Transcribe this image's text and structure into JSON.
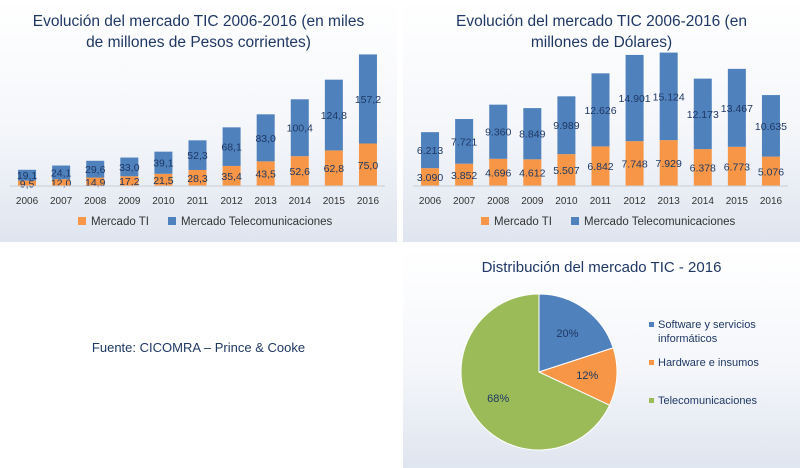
{
  "colors": {
    "ti": "#f79646",
    "tel": "#4f81bd",
    "pie_software": "#4f81bd",
    "pie_hardware": "#f79646",
    "pie_tele": "#9bbb59",
    "text": "#1f3864"
  },
  "source": "Fuente: CICOMRA – Prince & Cooke",
  "chart_data": [
    {
      "type": "bar",
      "stacked": true,
      "title_line1": "Evolución del mercado TIC 2006-2016 (en miles",
      "title_line2": "de millones de Pesos corrientes)",
      "categories": [
        "2006",
        "2007",
        "2008",
        "2009",
        "2010",
        "2011",
        "2012",
        "2013",
        "2014",
        "2015",
        "2016"
      ],
      "series": [
        {
          "name": "Mercado TI",
          "values": [
            9.5,
            12.0,
            14.9,
            17.2,
            21.5,
            28.3,
            35.4,
            43.5,
            52.6,
            62.8,
            75.0
          ],
          "labels": [
            "9,5",
            "12,0",
            "14,9",
            "17,2",
            "21,5",
            "28,3",
            "35,4",
            "43,5",
            "52,6",
            "62,8",
            "75,0"
          ]
        },
        {
          "name": "Mercado Telecomunicaciones",
          "values": [
            19.1,
            24.1,
            29.6,
            33.0,
            39.1,
            52.3,
            68.1,
            83.0,
            100.4,
            124.8,
            157.2
          ],
          "labels": [
            "19,1",
            "24,1",
            "29,6",
            "33,0",
            "39,1",
            "52,3",
            "68,1",
            "83,0",
            "100,4",
            "124,8",
            "157,2"
          ]
        }
      ],
      "ylim": [
        0,
        240
      ],
      "legend_position": "bottom"
    },
    {
      "type": "bar",
      "stacked": true,
      "title_line1": "Evolución del mercado TIC 2006-2016 (en",
      "title_line2": "millones de Dólares)",
      "categories": [
        "2006",
        "2007",
        "2008",
        "2009",
        "2010",
        "2011",
        "2012",
        "2013",
        "2014",
        "2015",
        "2016"
      ],
      "series": [
        {
          "name": "Mercado TI",
          "values": [
            3090,
            3852,
            4696,
            4612,
            5507,
            6842,
            7748,
            7929,
            6378,
            6773,
            5076
          ],
          "labels": [
            "3.090",
            "3.852",
            "4.696",
            "4.612",
            "5.507",
            "6.842",
            "7.748",
            "7.929",
            "6.378",
            "6.773",
            "5.076"
          ]
        },
        {
          "name": "Mercado Telecomunicaciones",
          "values": [
            6213,
            7721,
            9360,
            8849,
            9989,
            12626,
            14901,
            15124,
            12173,
            13467,
            10635
          ],
          "labels": [
            "6.213",
            "7.721",
            "9.360",
            "8.849",
            "9.989",
            "12.626",
            "14.901",
            "15.124",
            "12.173",
            "13.467",
            "10.635"
          ]
        }
      ],
      "ylim": [
        0,
        23500
      ],
      "legend_position": "bottom"
    },
    {
      "type": "pie",
      "title": "Distribución del mercado TIC - 2016",
      "slices": [
        {
          "name": "Software y servicios informáticos",
          "name_line1": "Software y servicios",
          "name_line2": "informáticos",
          "value": 20,
          "label": "20%"
        },
        {
          "name": "Hardware e insumos",
          "value": 12,
          "label": "12%"
        },
        {
          "name": "Telecomunicaciones",
          "value": 68,
          "label": "68%"
        }
      ],
      "legend_position": "right"
    }
  ]
}
